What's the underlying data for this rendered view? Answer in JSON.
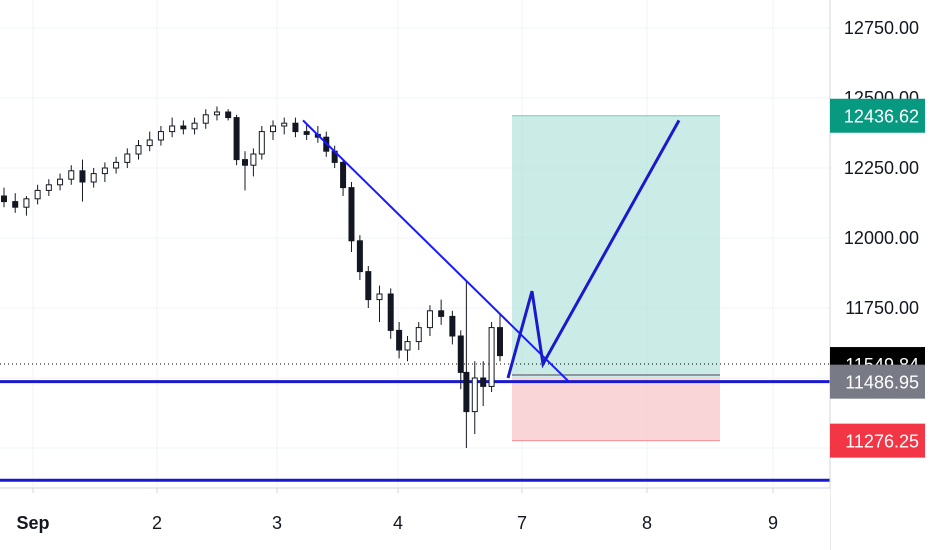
{
  "chart_data": {
    "type": "candlestick",
    "x_ticks": [
      "Sep",
      "2",
      "3",
      "4",
      "7",
      "8",
      "9"
    ],
    "y_ticks": [
      "12750.00",
      "12500.00",
      "12250.00",
      "12000.00",
      "11750.00"
    ],
    "ylim": [
      11100,
      12850
    ],
    "grid": true,
    "price_tags": [
      {
        "label": "12436.62",
        "price": 12436.62,
        "color": "#089981"
      },
      {
        "label": "11549.84",
        "price": 11549.84,
        "color": "#000000"
      },
      {
        "label": "11486.95",
        "price": 11486.95,
        "color": "#787b86"
      },
      {
        "label": "11276.25",
        "price": 11276.25,
        "color": "#f23645"
      }
    ],
    "candles": [
      {
        "t": 0.0,
        "o": 12150,
        "h": 12180,
        "l": 12110,
        "c": 12130
      },
      {
        "t": 0.08,
        "o": 12130,
        "h": 12160,
        "l": 12090,
        "c": 12110
      },
      {
        "t": 0.16,
        "o": 12110,
        "h": 12150,
        "l": 12080,
        "c": 12140
      },
      {
        "t": 0.24,
        "o": 12140,
        "h": 12190,
        "l": 12120,
        "c": 12170
      },
      {
        "t": 0.32,
        "o": 12170,
        "h": 12210,
        "l": 12150,
        "c": 12190
      },
      {
        "t": 0.4,
        "o": 12190,
        "h": 12230,
        "l": 12170,
        "c": 12210
      },
      {
        "t": 0.48,
        "o": 12210,
        "h": 12260,
        "l": 12190,
        "c": 12240
      },
      {
        "t": 0.56,
        "o": 12240,
        "h": 12280,
        "l": 12130,
        "c": 12200
      },
      {
        "t": 0.64,
        "o": 12200,
        "h": 12250,
        "l": 12180,
        "c": 12230
      },
      {
        "t": 0.72,
        "o": 12230,
        "h": 12270,
        "l": 12200,
        "c": 12250
      },
      {
        "t": 0.8,
        "o": 12250,
        "h": 12290,
        "l": 12230,
        "c": 12270
      },
      {
        "t": 0.88,
        "o": 12270,
        "h": 12320,
        "l": 12250,
        "c": 12300
      },
      {
        "t": 0.96,
        "o": 12300,
        "h": 12350,
        "l": 12280,
        "c": 12330
      },
      {
        "t": 1.04,
        "o": 12330,
        "h": 12380,
        "l": 12310,
        "c": 12350
      },
      {
        "t": 1.12,
        "o": 12350,
        "h": 12400,
        "l": 12330,
        "c": 12380
      },
      {
        "t": 1.2,
        "o": 12380,
        "h": 12430,
        "l": 12360,
        "c": 12400
      },
      {
        "t": 1.28,
        "o": 12400,
        "h": 12420,
        "l": 12370,
        "c": 12390
      },
      {
        "t": 1.36,
        "o": 12390,
        "h": 12430,
        "l": 12370,
        "c": 12410
      },
      {
        "t": 1.44,
        "o": 12410,
        "h": 12460,
        "l": 12390,
        "c": 12440
      },
      {
        "t": 1.52,
        "o": 12440,
        "h": 12470,
        "l": 12420,
        "c": 12450
      },
      {
        "t": 1.6,
        "o": 12450,
        "h": 12460,
        "l": 12420,
        "c": 12430
      },
      {
        "t": 1.66,
        "o": 12430,
        "h": 12440,
        "l": 12260,
        "c": 12280
      },
      {
        "t": 1.72,
        "o": 12280,
        "h": 12310,
        "l": 12170,
        "c": 12260
      },
      {
        "t": 1.78,
        "o": 12260,
        "h": 12320,
        "l": 12220,
        "c": 12300
      },
      {
        "t": 1.84,
        "o": 12300,
        "h": 12400,
        "l": 12280,
        "c": 12380
      },
      {
        "t": 1.92,
        "o": 12380,
        "h": 12420,
        "l": 12350,
        "c": 12400
      },
      {
        "t": 2.0,
        "o": 12400,
        "h": 12430,
        "l": 12370,
        "c": 12410
      },
      {
        "t": 2.08,
        "o": 12410,
        "h": 12430,
        "l": 12360,
        "c": 12380
      },
      {
        "t": 2.16,
        "o": 12380,
        "h": 12410,
        "l": 12350,
        "c": 12370
      },
      {
        "t": 2.24,
        "o": 12370,
        "h": 12400,
        "l": 12340,
        "c": 12360
      },
      {
        "t": 2.3,
        "o": 12360,
        "h": 12380,
        "l": 12290,
        "c": 12310
      },
      {
        "t": 2.36,
        "o": 12310,
        "h": 12330,
        "l": 12250,
        "c": 12270
      },
      {
        "t": 2.42,
        "o": 12270,
        "h": 12280,
        "l": 12150,
        "c": 12180
      },
      {
        "t": 2.48,
        "o": 12180,
        "h": 12200,
        "l": 11950,
        "c": 11990
      },
      {
        "t": 2.54,
        "o": 11990,
        "h": 12010,
        "l": 11850,
        "c": 11880
      },
      {
        "t": 2.6,
        "o": 11880,
        "h": 11900,
        "l": 11750,
        "c": 11780
      },
      {
        "t": 2.68,
        "o": 11780,
        "h": 11830,
        "l": 11700,
        "c": 11800
      },
      {
        "t": 2.76,
        "o": 11800,
        "h": 11820,
        "l": 11640,
        "c": 11670
      },
      {
        "t": 2.82,
        "o": 11670,
        "h": 11700,
        "l": 11570,
        "c": 11600
      },
      {
        "t": 2.88,
        "o": 11600,
        "h": 11650,
        "l": 11560,
        "c": 11630
      },
      {
        "t": 2.96,
        "o": 11630,
        "h": 11700,
        "l": 11600,
        "c": 11680
      },
      {
        "t": 3.04,
        "o": 11680,
        "h": 11760,
        "l": 11650,
        "c": 11740
      },
      {
        "t": 3.12,
        "o": 11740,
        "h": 11780,
        "l": 11690,
        "c": 11720
      },
      {
        "t": 3.2,
        "o": 11720,
        "h": 11740,
        "l": 11620,
        "c": 11650
      },
      {
        "t": 3.26,
        "o": 11650,
        "h": 11670,
        "l": 11460,
        "c": 11520
      },
      {
        "t": 3.3,
        "o": 11520,
        "h": 11850,
        "l": 11250,
        "c": 11380
      },
      {
        "t": 3.36,
        "o": 11380,
        "h": 11560,
        "l": 11300,
        "c": 11500
      },
      {
        "t": 3.42,
        "o": 11500,
        "h": 11560,
        "l": 11400,
        "c": 11470
      },
      {
        "t": 3.48,
        "o": 11470,
        "h": 11700,
        "l": 11450,
        "c": 11680
      },
      {
        "t": 3.54,
        "o": 11680,
        "h": 11730,
        "l": 11560,
        "c": 11580
      }
    ]
  },
  "drawings": {
    "trendline": {
      "from": {
        "t": 2.18,
        "p": 12420
      },
      "to": {
        "t": 4.1,
        "p": 11490
      },
      "color": "#1a1aff"
    },
    "horizontal_levels": [
      {
        "price": 11486.95,
        "color": "#1a1acc"
      },
      {
        "price": 11135,
        "color": "#1a1acc"
      }
    ],
    "current_price_line": {
      "price": 11549.84,
      "color": "#000000"
    },
    "long_position": {
      "t_start": 3.68,
      "t_end": 5.18,
      "entry": 11500,
      "target": 12436.62,
      "stop": 11276.25,
      "profit_color": "#a8dfd6",
      "loss_color": "#f7c3c6"
    },
    "projection_path": [
      {
        "t": 3.66,
        "p": 11500
      },
      {
        "t": 3.83,
        "p": 11810
      },
      {
        "t": 3.93,
        "p": 11550
      },
      {
        "t": 4.96,
        "p": 12420
      }
    ]
  }
}
